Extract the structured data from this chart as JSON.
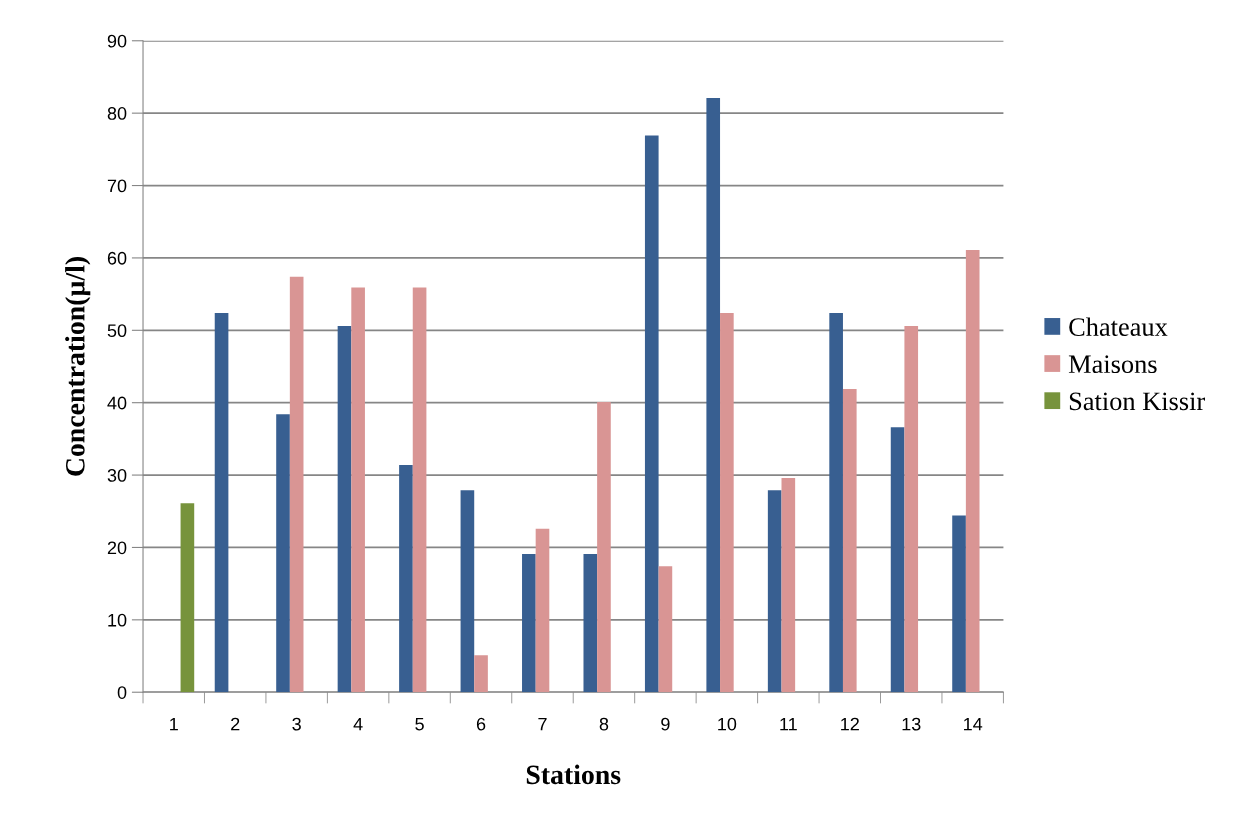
{
  "chart_data": {
    "type": "bar",
    "xlabel": "Stations",
    "ylabel": "Concentration(µ/l)",
    "categories": [
      "1",
      "2",
      "3",
      "4",
      "5",
      "6",
      "7",
      "8",
      "9",
      "10",
      "11",
      "12",
      "13",
      "14"
    ],
    "series": [
      {
        "name": "Chateaux",
        "color": "#385f91",
        "values": [
          null,
          52.4,
          38.4,
          50.6,
          31.4,
          27.9,
          19.1,
          19.1,
          76.9,
          82.1,
          27.9,
          52.4,
          36.6,
          24.4
        ]
      },
      {
        "name": "Maisons",
        "color": "#d99594",
        "values": [
          null,
          null,
          57.4,
          55.9,
          55.9,
          5.1,
          22.6,
          40.1,
          17.4,
          52.4,
          29.6,
          41.9,
          50.6,
          61.1
        ]
      },
      {
        "name": "Sation Kissir",
        "color": "#77933c",
        "values": [
          26.1,
          null,
          null,
          null,
          null,
          null,
          null,
          null,
          null,
          null,
          null,
          null,
          null,
          null
        ]
      }
    ],
    "ylim": [
      0,
      90
    ],
    "yticks": [
      0,
      10,
      20,
      30,
      40,
      50,
      60,
      70,
      80,
      90
    ],
    "grid": "y",
    "legend": "right"
  }
}
